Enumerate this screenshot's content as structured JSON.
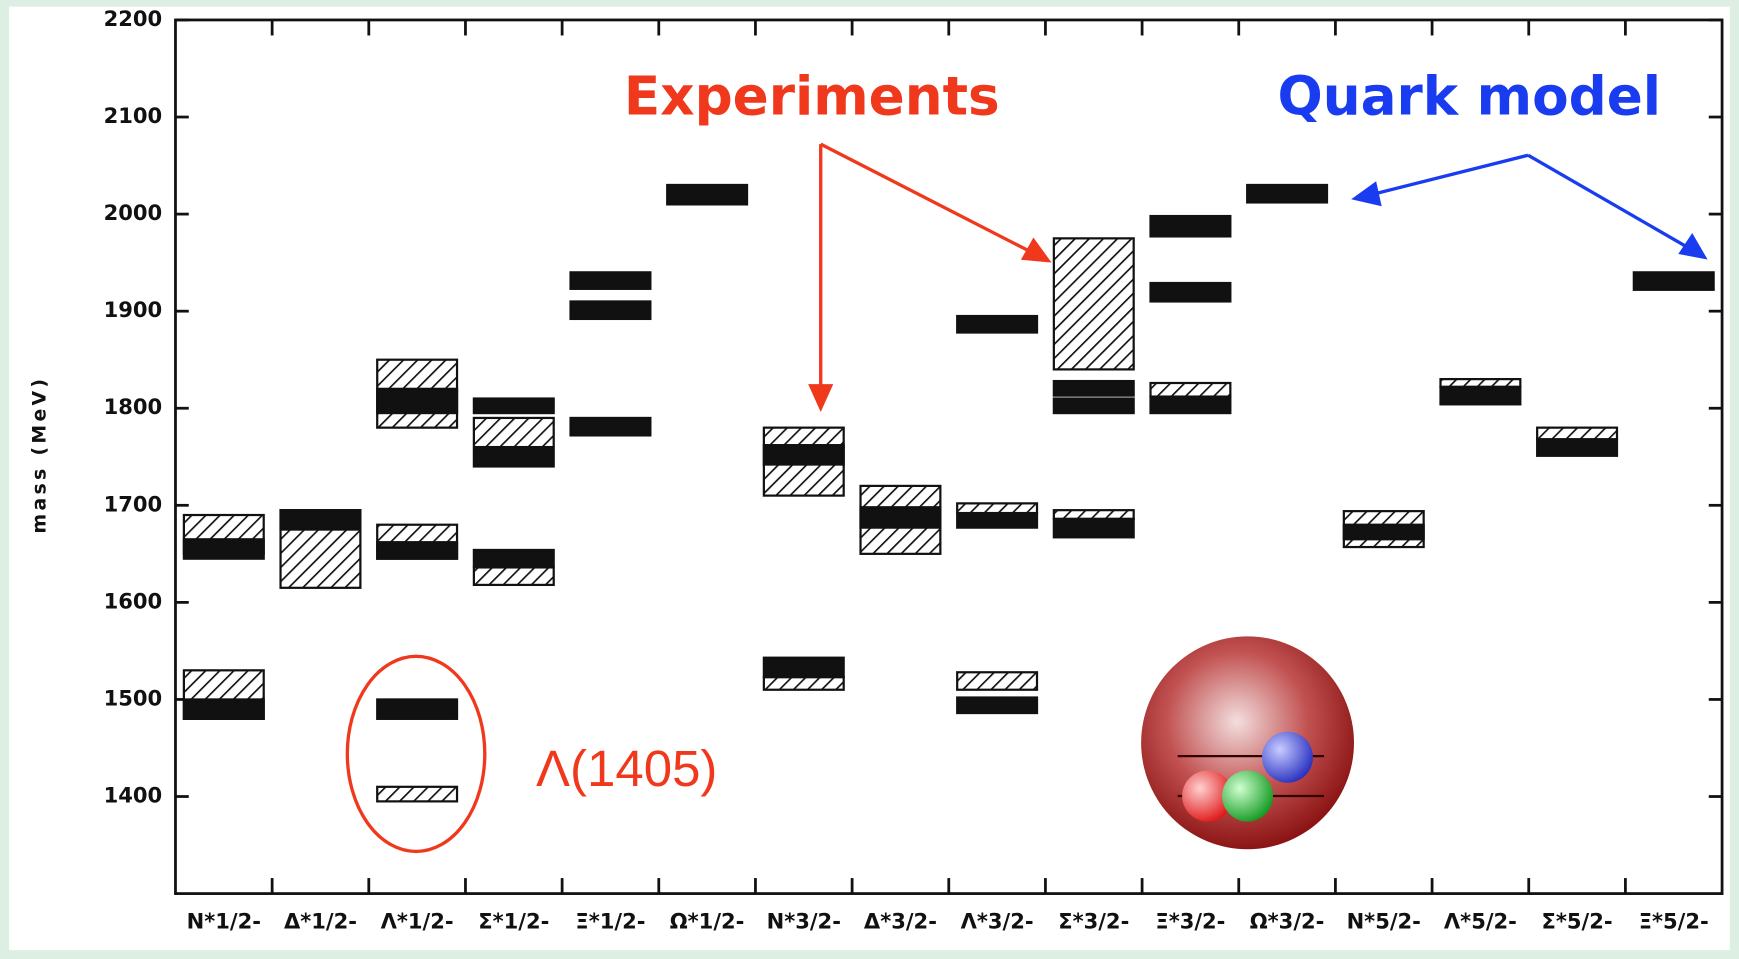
{
  "chart_data": {
    "type": "levels",
    "ylabel": "mass (MeV)",
    "ylim": [
      1300,
      2200
    ],
    "yticks": [
      1400,
      1500,
      1600,
      1700,
      1800,
      1900,
      2000,
      2100,
      2200
    ],
    "categories": [
      "N*1/2-",
      "Δ*1/2-",
      "Λ*1/2-",
      "Σ*1/2-",
      "Ξ*1/2-",
      "Ω*1/2-",
      "N*3/2-",
      "Δ*3/2-",
      "Λ*3/2-",
      "Σ*3/2-",
      "Ξ*3/2-",
      "Ω*3/2-",
      "N*5/2-",
      "Λ*5/2-",
      "Σ*5/2-",
      "Ξ*5/2-"
    ],
    "series": [
      {
        "name": "Experiments",
        "style": "hatched",
        "label_color": "#f0381c",
        "ranges": [
          [
            [
              1650,
              1690
            ],
            [
              1480,
              1530
            ]
          ],
          [
            [
              1615,
              1695
            ]
          ],
          [
            [
              1780,
              1850
            ],
            [
              1645,
              1680
            ],
            [
              1395,
              1410
            ]
          ],
          [
            [
              1760,
              1790
            ],
            [
              1618,
              1636
            ]
          ],
          [],
          [],
          [
            [
              1710,
              1780
            ],
            [
              1510,
              1523
            ]
          ],
          [
            [
              1650,
              1720
            ]
          ],
          [
            [
              1692,
              1702
            ],
            [
              1510,
              1528
            ]
          ],
          [
            [
              1840,
              1975
            ],
            [
              1686,
              1695
            ]
          ],
          [
            [
              1812,
              1826
            ]
          ],
          [],
          [
            [
              1657,
              1694
            ]
          ],
          [
            [
              1822,
              1830
            ]
          ],
          [
            [
              1768,
              1780
            ]
          ],
          []
        ]
      },
      {
        "name": "Quark model",
        "style": "solid",
        "label_color": "#1a3cf0",
        "ranges": [
          [
            [
              1645,
              1665
            ],
            [
              1480,
              1500
            ]
          ],
          [
            [
              1675,
              1695
            ]
          ],
          [
            [
              1795,
              1820
            ],
            [
              1645,
              1662
            ],
            [
              1480,
              1500
            ]
          ],
          [
            [
              1795,
              1810
            ],
            [
              1740,
              1758
            ],
            [
              1637,
              1654
            ]
          ],
          [
            [
              1923,
              1940
            ],
            [
              1892,
              1910
            ],
            [
              1772,
              1790
            ]
          ],
          [
            [
              2010,
              2030
            ]
          ],
          [
            [
              1742,
              1762
            ],
            [
              1523,
              1543
            ]
          ],
          [
            [
              1677,
              1698
            ]
          ],
          [
            [
              1878,
              1895
            ],
            [
              1677,
              1692
            ],
            [
              1486,
              1502
            ]
          ],
          [
            [
              1813,
              1828
            ],
            [
              1795,
              1810
            ],
            [
              1667,
              1686
            ]
          ],
          [
            [
              1977,
              1998
            ],
            [
              1910,
              1929
            ],
            [
              1795,
              1812
            ]
          ],
          [
            [
              2012,
              2030
            ]
          ],
          [
            [
              1665,
              1680
            ]
          ],
          [
            [
              1804,
              1822
            ]
          ],
          [
            [
              1751,
              1768
            ]
          ],
          [
            [
              1922,
              1940
            ]
          ]
        ]
      }
    ],
    "annotation": "Λ(1405)"
  }
}
